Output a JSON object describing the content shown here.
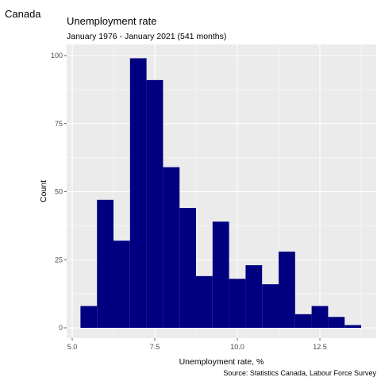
{
  "chart_data": {
    "type": "bar",
    "region": "Canada",
    "title": "Unemployment rate",
    "subtitle": "January 1976 - January 2021 (541 months)",
    "xlabel": "Unemployment rate, %",
    "ylabel": "Count",
    "caption": "Source: Statistics Canada, Labour Force Survey",
    "xlim": [
      5.0,
      13.8
    ],
    "ylim": [
      0,
      100
    ],
    "x_ticks": [
      5.0,
      7.5,
      10.0,
      12.5
    ],
    "x_tick_labels": [
      "5.0",
      "7.5",
      "10.0",
      "12.5"
    ],
    "y_ticks": [
      0,
      25,
      50,
      75,
      100
    ],
    "y_tick_labels": [
      "0",
      "25",
      "50",
      "75",
      "100"
    ],
    "bin_width": 0.5,
    "bin_starts": [
      5.25,
      5.75,
      6.25,
      6.75,
      7.25,
      7.75,
      8.25,
      8.75,
      9.25,
      9.75,
      10.25,
      10.75,
      11.25,
      11.75,
      12.25,
      12.75,
      13.25
    ],
    "values": [
      8,
      47,
      32,
      99,
      91,
      59,
      44,
      19,
      39,
      18,
      23,
      16,
      28,
      5,
      8,
      4,
      1
    ],
    "grid": true,
    "bar_color": "#000080",
    "panel_color": "#ebebeb",
    "grid_color": "#ffffff"
  }
}
